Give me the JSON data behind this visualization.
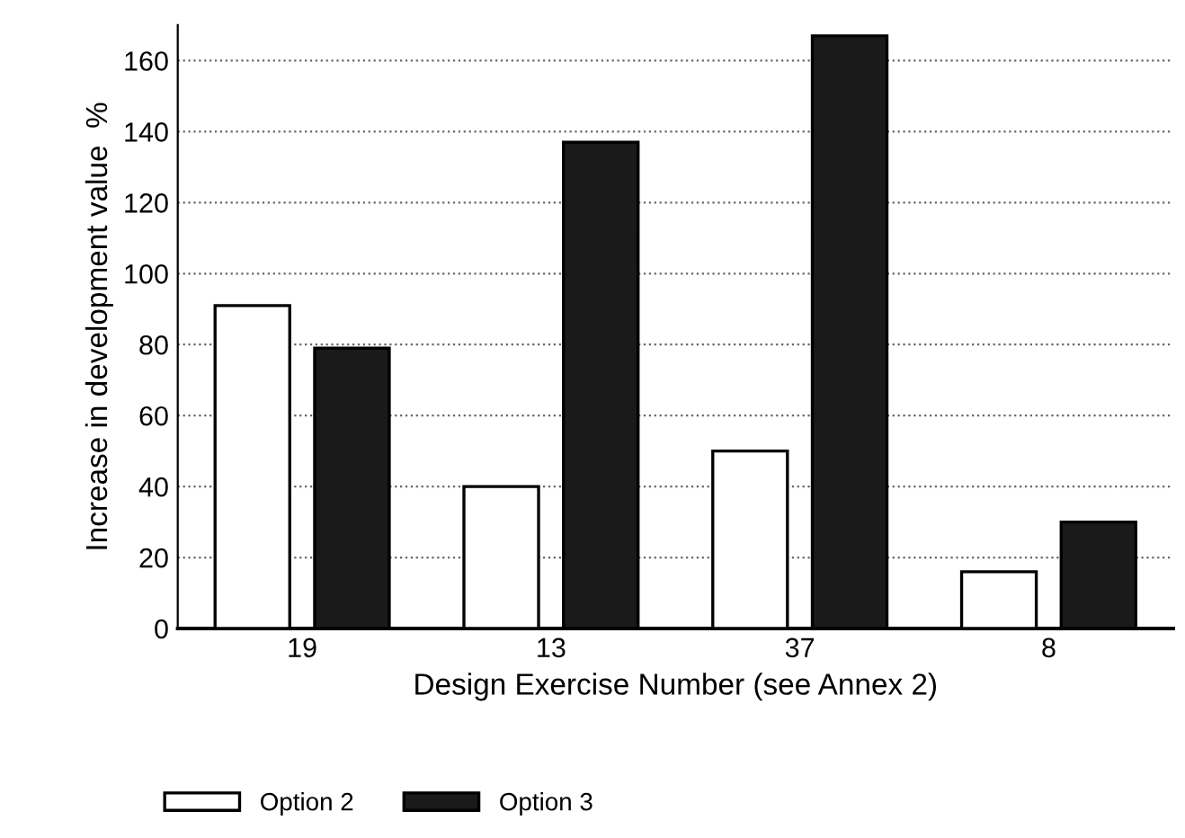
{
  "chart_data": {
    "type": "bar",
    "xlabel": "Design Exercise Number (see Annex 2)",
    "ylabel": "Increase in development value  %",
    "categories": [
      "19",
      "13",
      "37",
      "8"
    ],
    "series": [
      {
        "name": "Option 2",
        "color": "#ffffff",
        "values": [
          91,
          40,
          50,
          16
        ]
      },
      {
        "name": "Option 3",
        "color": "#1a1a1a",
        "values": [
          79,
          137,
          167,
          30
        ]
      }
    ],
    "ylim": [
      0,
      170
    ],
    "yticks": [
      0,
      20,
      40,
      60,
      80,
      100,
      120,
      140,
      160
    ],
    "grid": "y",
    "legend": "bottom left"
  }
}
